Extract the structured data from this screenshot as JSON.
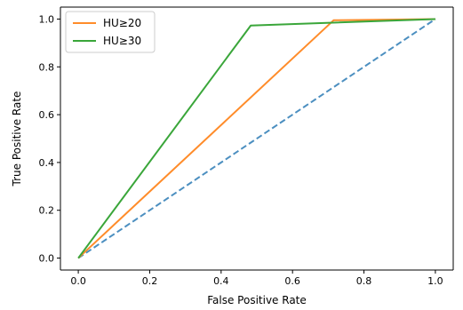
{
  "chart_data": {
    "type": "line",
    "xlabel": "False Positive Rate",
    "ylabel": "True Positive Rate",
    "xlim": [
      -0.05,
      1.05
    ],
    "ylim": [
      -0.05,
      1.05
    ],
    "xticks": [
      0.0,
      0.2,
      0.4,
      0.6,
      0.8,
      1.0
    ],
    "yticks": [
      0.0,
      0.2,
      0.4,
      0.6,
      0.8,
      1.0
    ],
    "xtick_labels": [
      "0.0",
      "0.2",
      "0.4",
      "0.6",
      "0.8",
      "1.0"
    ],
    "ytick_labels": [
      "0.0",
      "0.2",
      "0.4",
      "0.6",
      "0.8",
      "1.0"
    ],
    "grid": false,
    "legend_position": "top-left",
    "series": [
      {
        "name": "",
        "color": "#4c8fc0",
        "dashed": true,
        "in_legend": false,
        "x": [
          0.0,
          1.0
        ],
        "y": [
          0.0,
          1.0
        ]
      },
      {
        "name": "HU≥20",
        "color": "#ff8c2a",
        "dashed": false,
        "in_legend": true,
        "x": [
          0.0,
          0.715,
          1.0
        ],
        "y": [
          0.0,
          0.995,
          1.0
        ]
      },
      {
        "name": "HU≥30",
        "color": "#3aa63a",
        "dashed": false,
        "in_legend": true,
        "x": [
          0.0,
          0.483,
          1.0
        ],
        "y": [
          0.0,
          0.973,
          1.0
        ]
      }
    ]
  }
}
